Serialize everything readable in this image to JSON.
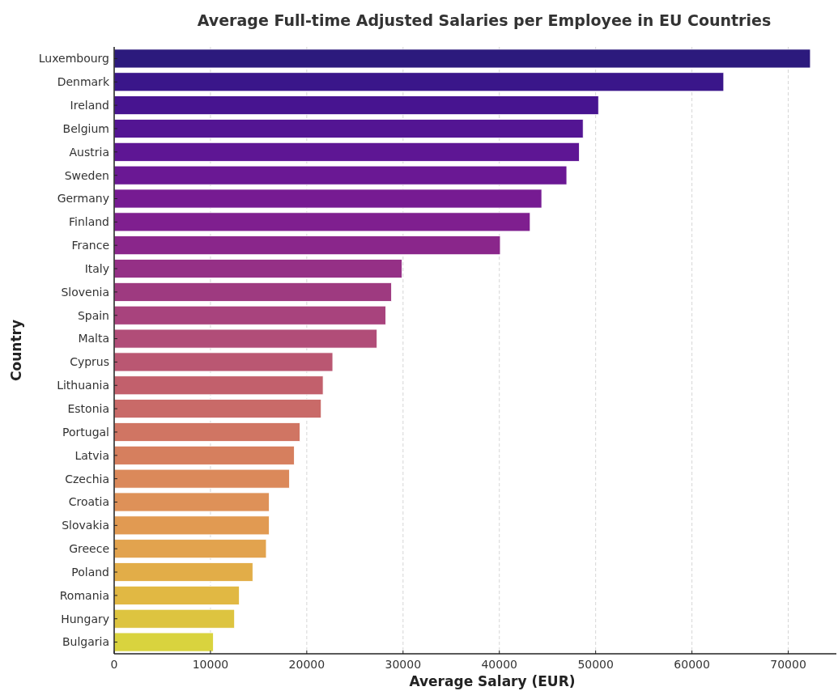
{
  "chart_data": {
    "type": "bar",
    "orientation": "horizontal",
    "title": "Average Full-time Adjusted Salaries per Employee in EU Countries",
    "xlabel": "Average Salary (EUR)",
    "ylabel": "Country",
    "categories": [
      "Luxembourg",
      "Denmark",
      "Ireland",
      "Belgium",
      "Austria",
      "Sweden",
      "Germany",
      "Finland",
      "France",
      "Italy",
      "Slovenia",
      "Spain",
      "Malta",
      "Cyprus",
      "Lithuania",
      "Estonia",
      "Portugal",
      "Latvia",
      "Czechia",
      "Croatia",
      "Slovakia",
      "Greece",
      "Poland",
      "Romania",
      "Hungary",
      "Bulgaria"
    ],
    "values": [
      72300,
      63300,
      50300,
      48700,
      48300,
      47000,
      44400,
      43200,
      40100,
      29900,
      28800,
      28200,
      27300,
      22700,
      21700,
      21500,
      19300,
      18700,
      18200,
      16100,
      16100,
      15800,
      14400,
      13000,
      12500,
      10300
    ],
    "colors": [
      "#2c1a7d",
      "#3a168a",
      "#471490",
      "#531593",
      "#5e1694",
      "#6a1894",
      "#761b92",
      "#7f1f8f",
      "#8a268b",
      "#953086",
      "#9e3a80",
      "#a8437d",
      "#b14d78",
      "#ba5772",
      "#c2606c",
      "#c96a68",
      "#d07563",
      "#d67f5e",
      "#db895a",
      "#de9158",
      "#e19a52",
      "#e2a34e",
      "#e2ad48",
      "#e1b843",
      "#ddc440",
      "#d9d33e"
    ],
    "xlim": [
      0,
      75000
    ],
    "xticks": [
      0,
      10000,
      20000,
      30000,
      40000,
      50000,
      60000,
      70000
    ],
    "grid": "x"
  }
}
